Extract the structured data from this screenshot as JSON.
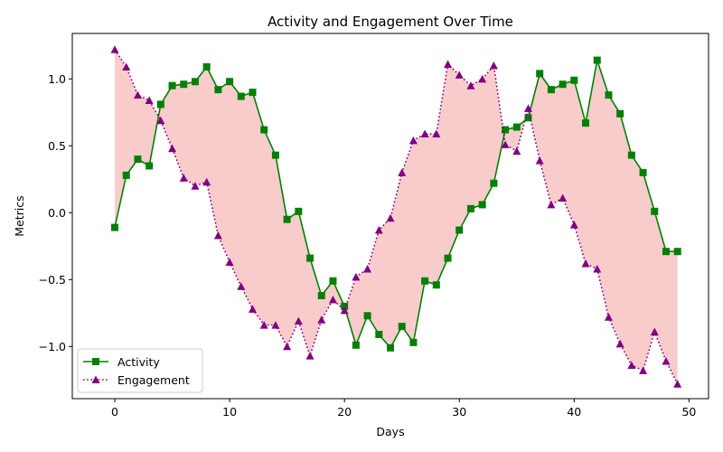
{
  "chart_data": {
    "type": "line",
    "title": "Activity and Engagement Over Time",
    "xlabel": "Days",
    "ylabel": "Metrics",
    "xlim": [
      -3.7,
      51.7
    ],
    "ylim": [
      -1.39,
      1.34
    ],
    "xticks": [
      0,
      10,
      20,
      30,
      40,
      50
    ],
    "xtick_labels": [
      "0",
      "10",
      "20",
      "30",
      "40",
      "50"
    ],
    "yticks": [
      -1.0,
      -0.5,
      0.0,
      0.5,
      1.0
    ],
    "ytick_labels": [
      "−1.0",
      "−0.5",
      "0.0",
      "0.5",
      "1.0"
    ],
    "grid": false,
    "legend_position": "lower-left",
    "fill_between": {
      "color": "#f08080",
      "alpha": 0.4
    },
    "x": [
      0,
      1,
      2,
      3,
      4,
      5,
      6,
      7,
      8,
      9,
      10,
      11,
      12,
      13,
      14,
      15,
      16,
      17,
      18,
      19,
      20,
      21,
      22,
      23,
      24,
      25,
      26,
      27,
      28,
      29,
      30,
      31,
      32,
      33,
      34,
      35,
      36,
      37,
      38,
      39,
      40,
      41,
      42,
      43,
      44,
      45,
      46,
      47,
      48,
      49
    ],
    "series": [
      {
        "name": "Activity",
        "color": "#008000",
        "marker": "square",
        "linestyle": "solid",
        "values": [
          -0.11,
          0.28,
          0.4,
          0.35,
          0.81,
          0.95,
          0.96,
          0.98,
          1.09,
          0.92,
          0.98,
          0.87,
          0.9,
          0.62,
          0.43,
          -0.05,
          0.01,
          -0.34,
          -0.62,
          -0.51,
          -0.7,
          -0.99,
          -0.77,
          -0.91,
          -1.01,
          -0.85,
          -0.97,
          -0.51,
          -0.54,
          -0.34,
          -0.13,
          0.03,
          0.06,
          0.22,
          0.62,
          0.64,
          0.71,
          1.04,
          0.92,
          0.96,
          0.99,
          0.67,
          1.14,
          0.88,
          0.74,
          0.43,
          0.3,
          0.01,
          -0.29,
          -0.29
        ]
      },
      {
        "name": "Engagement",
        "color": "#800080",
        "marker": "triangle",
        "linestyle": "dotted",
        "values": [
          1.22,
          1.09,
          0.88,
          0.84,
          0.69,
          0.48,
          0.26,
          0.2,
          0.23,
          -0.17,
          -0.37,
          -0.55,
          -0.72,
          -0.84,
          -0.84,
          -1.0,
          -0.81,
          -1.07,
          -0.8,
          -0.65,
          -0.73,
          -0.48,
          -0.42,
          -0.13,
          -0.04,
          0.3,
          0.54,
          0.59,
          0.59,
          1.11,
          1.03,
          0.95,
          1.0,
          1.1,
          0.51,
          0.46,
          0.78,
          0.39,
          0.06,
          0.11,
          -0.09,
          -0.38,
          -0.42,
          -0.78,
          -0.98,
          -1.14,
          -1.18,
          -0.89,
          -1.11,
          -1.28
        ]
      }
    ]
  }
}
